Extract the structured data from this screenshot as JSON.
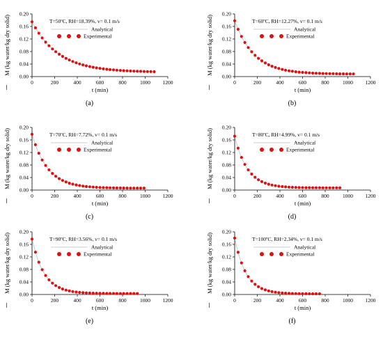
{
  "chart_data": [
    {
      "type": "scatter",
      "panel_label": "(a)",
      "annotation": "T=50ºC, RH=18.39%, v= 0.1 m/s",
      "legend": [
        "Analytical",
        "Experimental"
      ],
      "legend_placement": "top-right",
      "xlabel": "t (min)",
      "ylabel": "M (kg water/kg dry solid)",
      "xlim": [
        0,
        1200
      ],
      "ylim": [
        0,
        0.2
      ],
      "xticks": [
        "0",
        "200",
        "400",
        "600",
        "800",
        "1000",
        "1200"
      ],
      "yticks": [
        "0.00",
        "0.04",
        "0.08",
        "0.12",
        "0.16",
        "0.20"
      ],
      "m0": 0.175,
      "me": 0.014,
      "k": 0.0043,
      "tmax": 1080,
      "n": 37,
      "series": [
        {
          "name": "Analytical",
          "style": "line"
        },
        {
          "name": "Experimental",
          "style": "markers"
        }
      ]
    },
    {
      "type": "scatter",
      "panel_label": "(b)",
      "annotation": "T=60ºC, RH=12.27%, v= 0.1 m/s",
      "legend": [
        "Analytical",
        "Experimental"
      ],
      "legend_placement": "top-right",
      "xlabel": "t (min)",
      "ylabel": "M (kg water/kg dry solid)",
      "xlim": [
        0,
        1200
      ],
      "ylim": [
        0,
        0.2
      ],
      "xticks": [
        "0",
        "200",
        "400",
        "600",
        "800",
        "1000",
        "1200"
      ],
      "yticks": [
        "0.00",
        "0.04",
        "0.08",
        "0.12",
        "0.16",
        "0.20"
      ],
      "m0": 0.178,
      "me": 0.008,
      "k": 0.0058,
      "tmax": 1050,
      "n": 36,
      "series": [
        {
          "name": "Analytical",
          "style": "line"
        },
        {
          "name": "Experimental",
          "style": "markers"
        }
      ]
    },
    {
      "type": "scatter",
      "panel_label": "(c)",
      "annotation": "T=70ºC, RH=7.72%, v= 0.1 m/s",
      "legend": [
        "Analytical",
        "Experimental"
      ],
      "legend_placement": "top-right",
      "xlabel": "t (min)",
      "ylabel": "M (kg water/kg dry solid)",
      "xlim": [
        0,
        1200
      ],
      "ylim": [
        0,
        0.2
      ],
      "xticks": [
        "0",
        "200",
        "400",
        "600",
        "800",
        "1000",
        "1200"
      ],
      "yticks": [
        "0.00",
        "0.04",
        "0.08",
        "0.12",
        "0.16",
        "0.20"
      ],
      "m0": 0.178,
      "me": 0.006,
      "k": 0.0072,
      "tmax": 990,
      "n": 34,
      "series": [
        {
          "name": "Analytical",
          "style": "line"
        },
        {
          "name": "Experimental",
          "style": "markers"
        }
      ]
    },
    {
      "type": "scatter",
      "panel_label": "(d)",
      "annotation": "T=80ºC, RH=4.99%, v= 0.1 m/s",
      "legend": [
        "Analytical",
        "Experimental"
      ],
      "legend_placement": "top-right",
      "xlabel": "t (min)",
      "ylabel": "M (kg water/kg dry solid)",
      "xlim": [
        0,
        1200
      ],
      "ylim": [
        0,
        0.2
      ],
      "xticks": [
        "0",
        "200",
        "400",
        "600",
        "800",
        "1000",
        "1200"
      ],
      "yticks": [
        "0.00",
        "0.04",
        "0.08",
        "0.12",
        "0.16",
        "0.20"
      ],
      "m0": 0.172,
      "me": 0.007,
      "k": 0.0088,
      "tmax": 930,
      "n": 32,
      "series": [
        {
          "name": "Analytical",
          "style": "line"
        },
        {
          "name": "Experimental",
          "style": "markers"
        }
      ]
    },
    {
      "type": "scatter",
      "panel_label": "(e)",
      "annotation": "T=90ºC, RH=3.56%, v= 0.1 m/s",
      "legend": [
        "Analytical",
        "Experimental"
      ],
      "legend_placement": "top-right",
      "xlabel": "t (min)",
      "ylabel": "M (kg water/kg dry solid)",
      "xlim": [
        0,
        1200
      ],
      "ylim": [
        0,
        0.2
      ],
      "xticks": [
        "0",
        "200",
        "400",
        "600",
        "800",
        "1000",
        "1200"
      ],
      "yticks": [
        "0.00",
        "0.04",
        "0.08",
        "0.12",
        "0.16",
        "0.20"
      ],
      "m0": 0.177,
      "me": 0.003,
      "k": 0.0092,
      "tmax": 930,
      "n": 32,
      "series": [
        {
          "name": "Analytical",
          "style": "line"
        },
        {
          "name": "Experimental",
          "style": "markers"
        }
      ]
    },
    {
      "type": "scatter",
      "panel_label": "(f)",
      "annotation": "T=100ºC, RH=2.34%, v= 0.1 m/s",
      "legend": [
        "Analytical",
        "Experimental"
      ],
      "legend_placement": "top-right",
      "xlabel": "t (min)",
      "ylabel": "M (kg water/kg dry solid)",
      "xlim": [
        0,
        1200
      ],
      "ylim": [
        0,
        0.2
      ],
      "xticks": [
        "0",
        "200",
        "400",
        "600",
        "800",
        "1000",
        "1200"
      ],
      "yticks": [
        "0.00",
        "0.04",
        "0.08",
        "0.12",
        "0.16",
        "0.20"
      ],
      "m0": 0.18,
      "me": 0.002,
      "k": 0.0098,
      "tmax": 750,
      "n": 26,
      "series": [
        {
          "name": "Analytical",
          "style": "line"
        },
        {
          "name": "Experimental",
          "style": "markers"
        }
      ]
    }
  ],
  "colors": {
    "marker": "#e01010",
    "line": "#bbbbbb",
    "axis": "#000000"
  }
}
